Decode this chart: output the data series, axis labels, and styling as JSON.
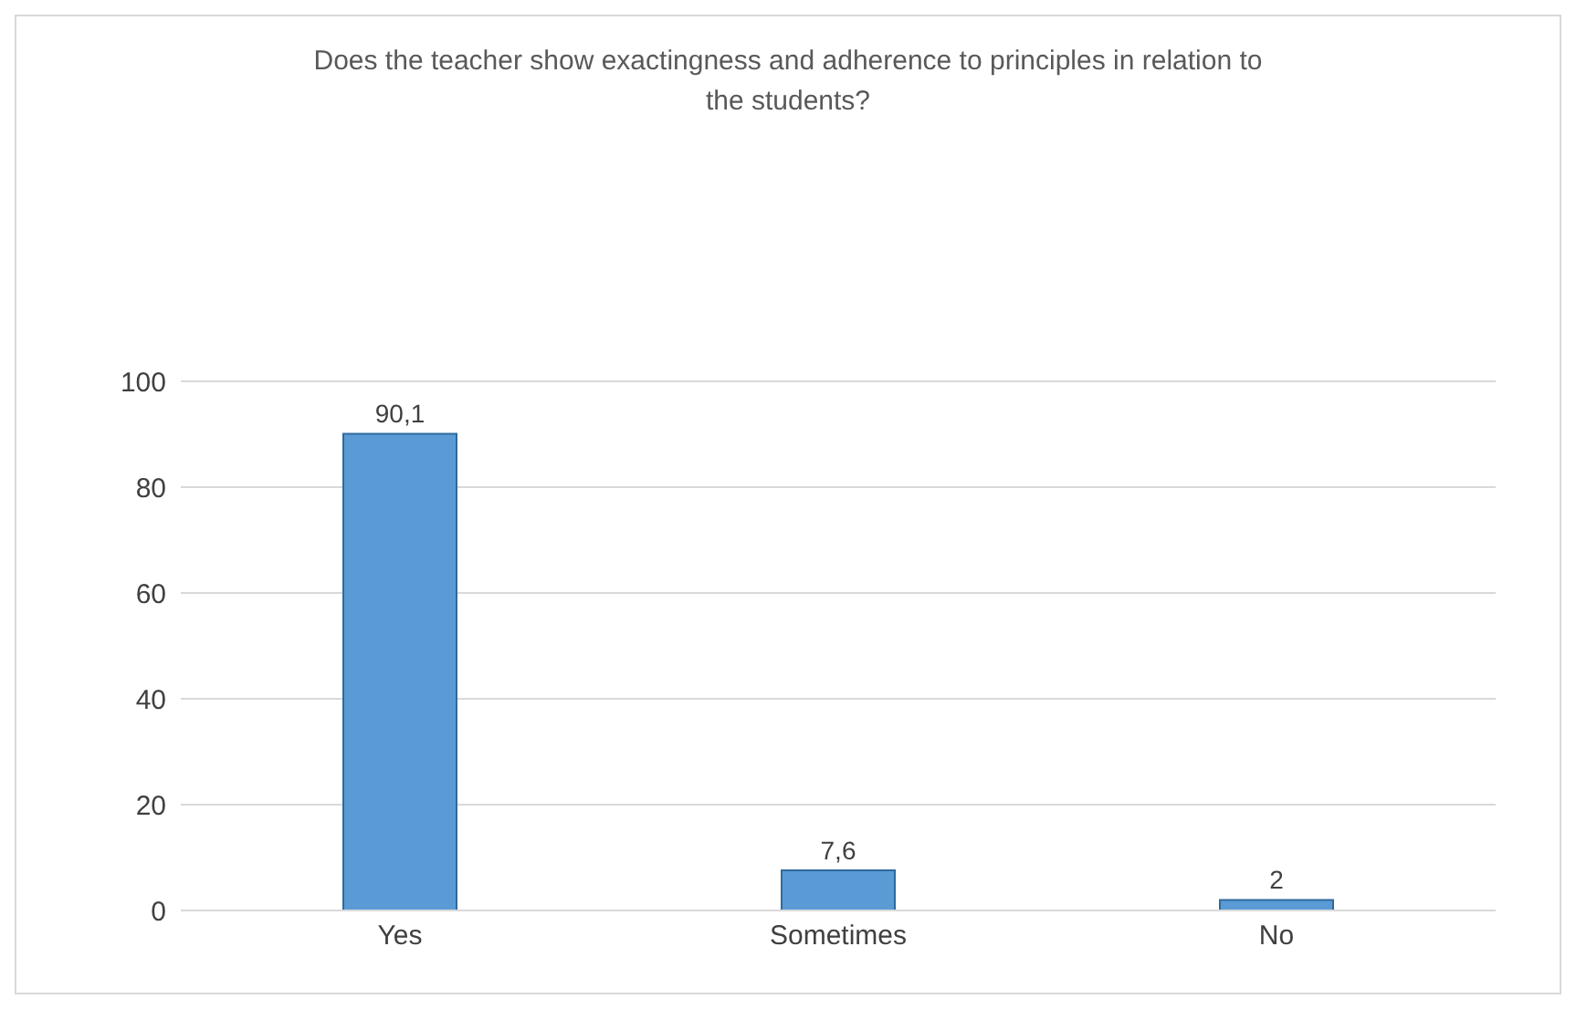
{
  "chart_data": {
    "type": "bar",
    "title": "Does the teacher show exactingness and adherence to principles in relation to the students?",
    "categories": [
      "Yes",
      "Sometimes",
      "No"
    ],
    "values": [
      90.1,
      7.6,
      2
    ],
    "value_labels": [
      "90,1",
      "7,6",
      "2"
    ],
    "color": "#5b9bd5",
    "ylim": [
      0,
      100
    ],
    "yticks": [
      0,
      20,
      40,
      60,
      80,
      100
    ],
    "grid": "y"
  }
}
